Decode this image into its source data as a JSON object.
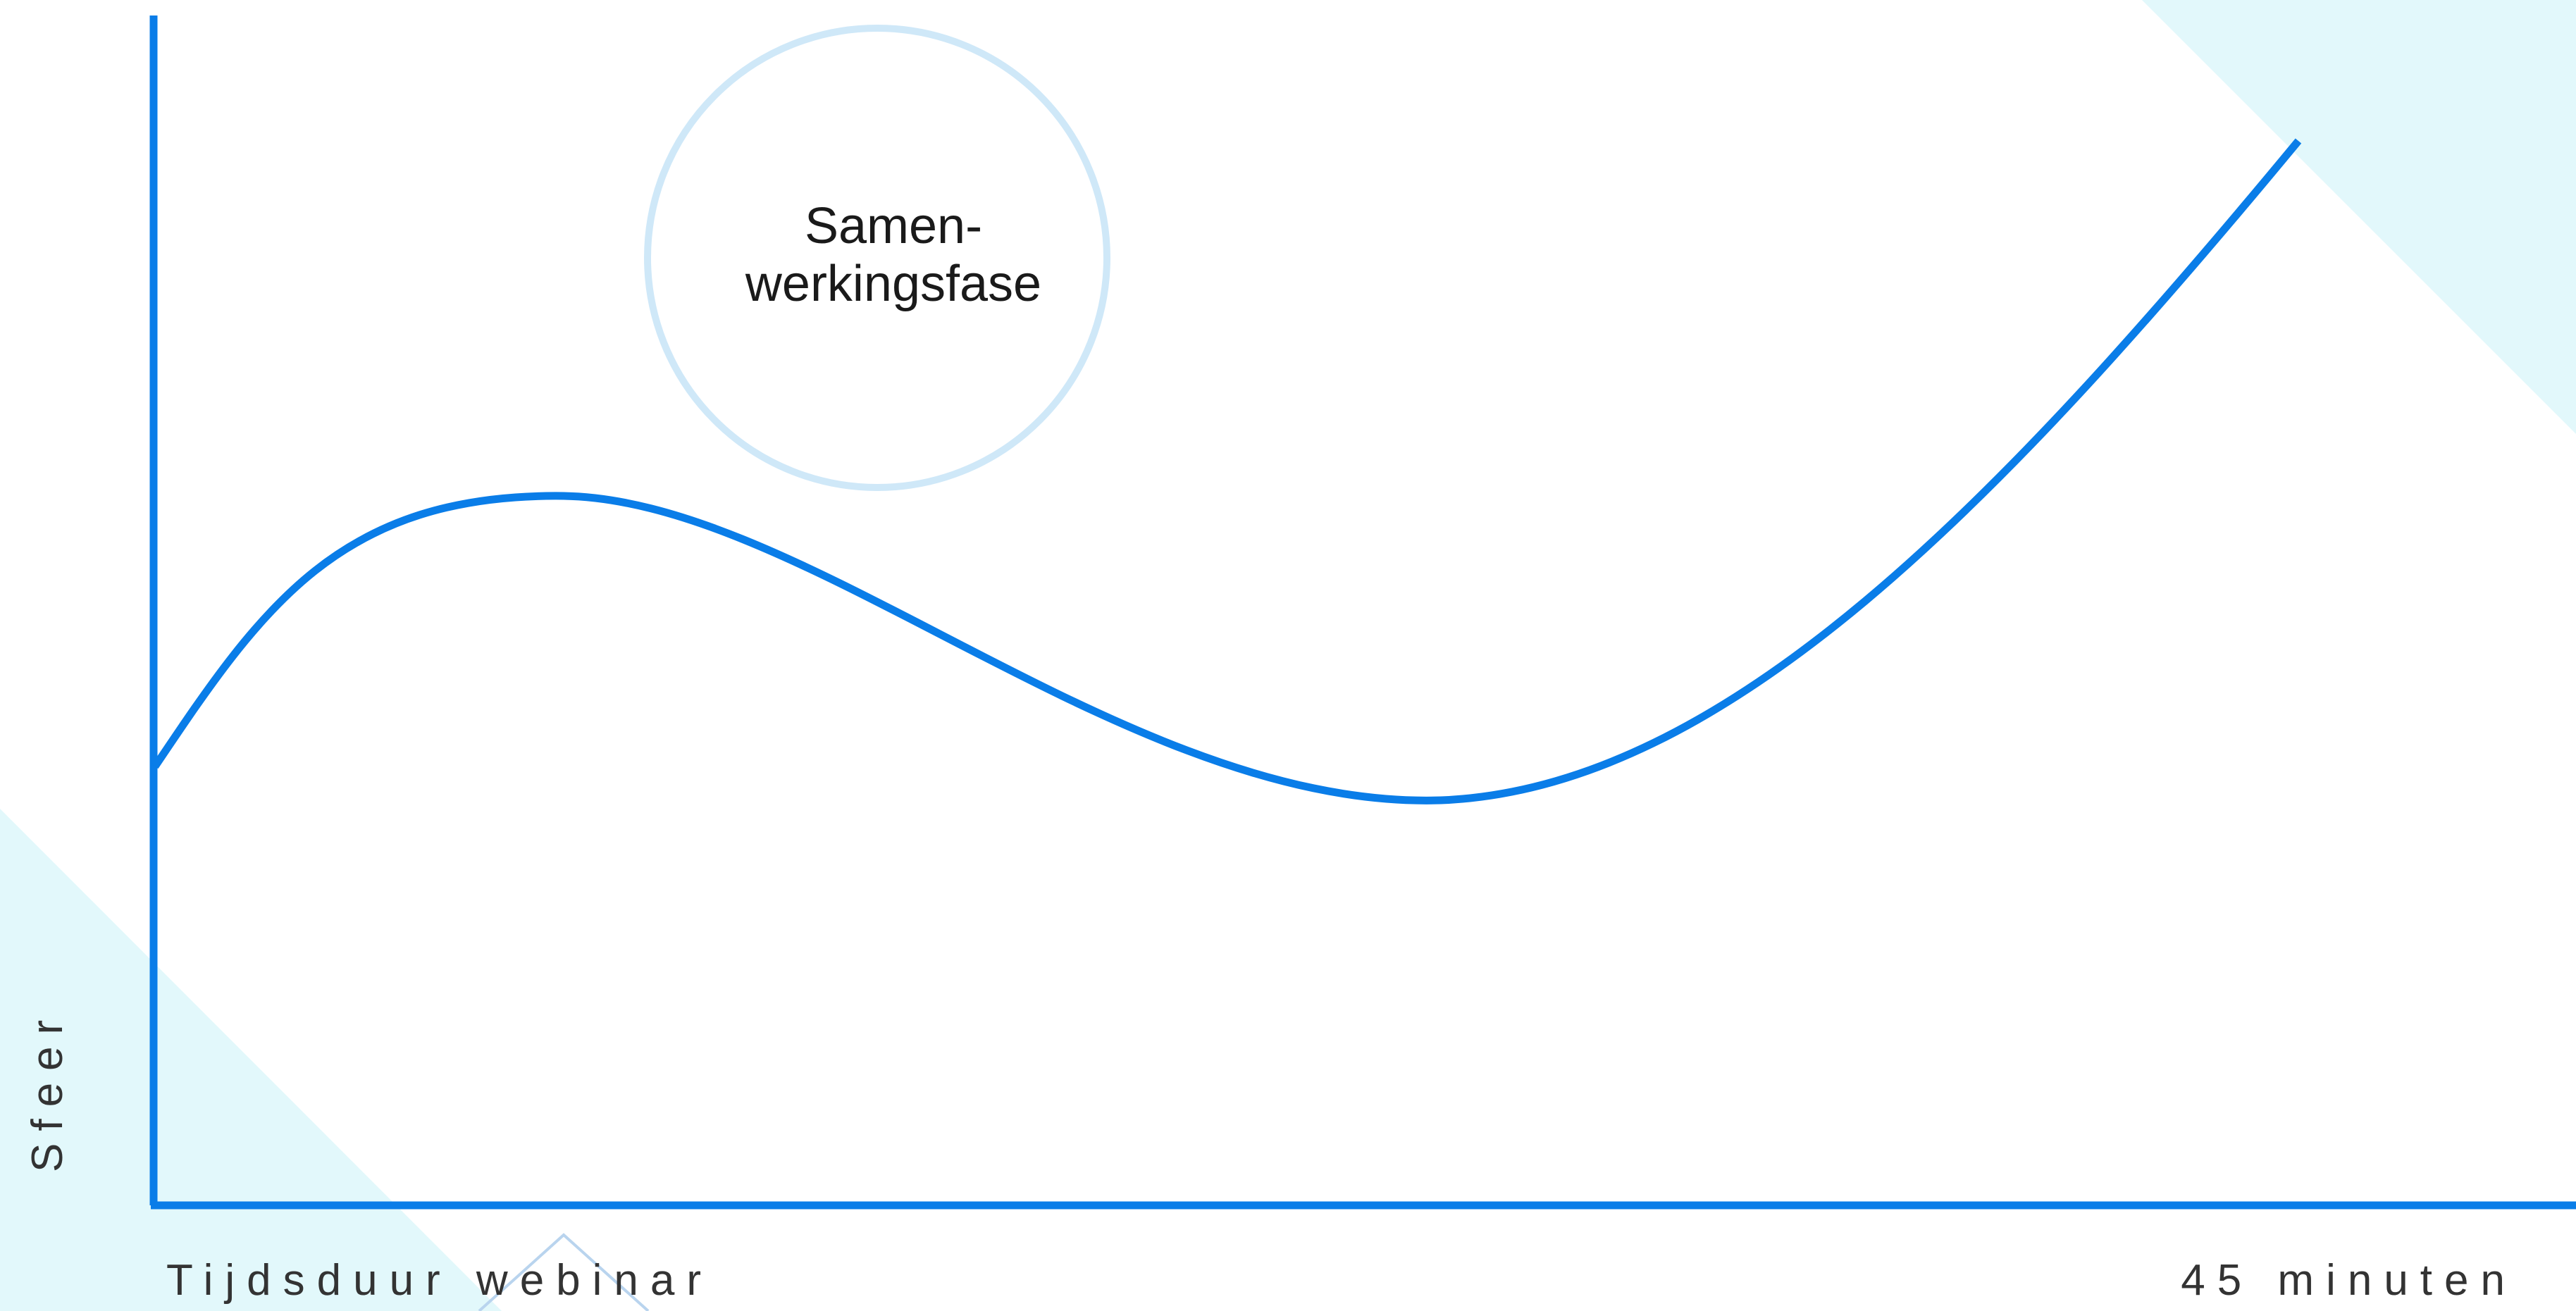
{
  "diagram": {
    "y_axis_label": "Sfeer",
    "x_axis_label": "Tijdsduur webinar",
    "x_axis_end_label": "45 minuten",
    "phase_bubble": {
      "line1": "Samen-",
      "line2": "werkingsfase"
    }
  },
  "colors": {
    "axis": "#0a7de8",
    "curve": "#0a7de8",
    "bubble_outline": "#cfe8f8",
    "background_triangle": "#e2f8fb",
    "chevron": "#b9d4ee"
  }
}
